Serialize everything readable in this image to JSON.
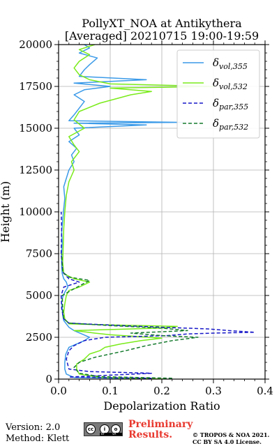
{
  "chart_data": {
    "type": "line",
    "title_lines": [
      "PollyXT_NOA at Antikythera",
      "[Averaged] 20210715 19:00-19:59"
    ],
    "xlabel": "Depolarization Ratio",
    "ylabel": "Height (m)",
    "xlim": [
      0,
      0.4
    ],
    "ylim": [
      0,
      20000
    ],
    "x_ticks": [
      0.0,
      0.1,
      0.2,
      0.3,
      0.4
    ],
    "x_tick_labels": [
      "0.0",
      "0.1",
      "0.2",
      "0.3",
      "0.4"
    ],
    "y_ticks": [
      0,
      2500,
      5000,
      7500,
      10000,
      12500,
      15000,
      17500,
      20000
    ],
    "y_tick_labels": [
      "0",
      "2500",
      "5000",
      "7500",
      "10000",
      "12500",
      "15000",
      "17500",
      "20000"
    ],
    "grid": true,
    "legend_position": "top-right",
    "series": [
      {
        "name": "vol,355",
        "legend_symbol": "δ",
        "legend_sub": "vol,355",
        "color": "#3a9ae8",
        "dash": "solid",
        "points": [
          [
            0.21,
            0
          ],
          [
            0.03,
            100
          ],
          [
            0.015,
            300
          ],
          [
            0.012,
            600
          ],
          [
            0.012,
            1000
          ],
          [
            0.014,
            1500
          ],
          [
            0.02,
            1900
          ],
          [
            0.035,
            2100
          ],
          [
            0.05,
            2300
          ],
          [
            0.06,
            2500
          ],
          [
            0.045,
            2700
          ],
          [
            0.03,
            2900
          ],
          [
            0.02,
            3100
          ],
          [
            0.015,
            3300
          ],
          [
            0.01,
            3500
          ],
          [
            0.008,
            3800
          ],
          [
            0.007,
            4200
          ],
          [
            0.006,
            4600
          ],
          [
            0.008,
            4900
          ],
          [
            0.012,
            5200
          ],
          [
            0.018,
            5500
          ],
          [
            0.015,
            5800
          ],
          [
            0.01,
            6000
          ],
          [
            0.007,
            6300
          ],
          [
            0.006,
            6800
          ],
          [
            0.006,
            7500
          ],
          [
            0.007,
            8200
          ],
          [
            0.006,
            8800
          ],
          [
            0.008,
            9500
          ],
          [
            0.01,
            10200
          ],
          [
            0.012,
            10800
          ],
          [
            0.01,
            11500
          ],
          [
            0.015,
            12000
          ],
          [
            0.02,
            12500
          ],
          [
            0.03,
            13000
          ],
          [
            0.025,
            13400
          ],
          [
            0.035,
            13800
          ],
          [
            0.02,
            14200
          ],
          [
            0.04,
            14600
          ],
          [
            0.03,
            15000
          ],
          [
            0.17,
            15200
          ],
          [
            0.03,
            15300
          ],
          [
            0.24,
            15350
          ],
          [
            0.02,
            15450
          ],
          [
            0.03,
            15800
          ],
          [
            0.04,
            16200
          ],
          [
            0.05,
            16600
          ],
          [
            0.03,
            17000
          ],
          [
            0.05,
            17300
          ],
          [
            0.1,
            17500
          ],
          [
            0.03,
            17700
          ],
          [
            0.17,
            17900
          ],
          [
            0.04,
            18100
          ],
          [
            0.05,
            18500
          ],
          [
            0.06,
            18800
          ],
          [
            0.075,
            19200
          ],
          [
            0.04,
            19500
          ],
          [
            0.06,
            19800
          ],
          [
            0.05,
            20000
          ]
        ]
      },
      {
        "name": "vol,532",
        "legend_symbol": "δ",
        "legend_sub": "vol,532",
        "color": "#7aeb1a",
        "dash": "solid",
        "points": [
          [
            0.21,
            0
          ],
          [
            0.08,
            100
          ],
          [
            0.04,
            300
          ],
          [
            0.035,
            600
          ],
          [
            0.035,
            900
          ],
          [
            0.05,
            1200
          ],
          [
            0.06,
            1500
          ],
          [
            0.08,
            1700
          ],
          [
            0.09,
            1900
          ],
          [
            0.12,
            2100
          ],
          [
            0.16,
            2300
          ],
          [
            0.2,
            2450
          ],
          [
            0.15,
            2550
          ],
          [
            0.1,
            2650
          ],
          [
            0.07,
            2750
          ],
          [
            0.03,
            2900
          ],
          [
            0.2,
            3050
          ],
          [
            0.23,
            3150
          ],
          [
            0.02,
            3300
          ],
          [
            0.012,
            3600
          ],
          [
            0.01,
            4000
          ],
          [
            0.012,
            4500
          ],
          [
            0.015,
            5000
          ],
          [
            0.02,
            5300
          ],
          [
            0.04,
            5500
          ],
          [
            0.06,
            5800
          ],
          [
            0.03,
            6000
          ],
          [
            0.01,
            6300
          ],
          [
            0.008,
            7000
          ],
          [
            0.009,
            8000
          ],
          [
            0.01,
            9000
          ],
          [
            0.012,
            10000
          ],
          [
            0.015,
            11000
          ],
          [
            0.02,
            11800
          ],
          [
            0.03,
            12500
          ],
          [
            0.025,
            13000
          ],
          [
            0.04,
            13600
          ],
          [
            0.03,
            14000
          ],
          [
            0.02,
            14500
          ],
          [
            0.05,
            15000
          ],
          [
            0.03,
            15500
          ],
          [
            0.04,
            16000
          ],
          [
            0.08,
            16500
          ],
          [
            0.14,
            17000
          ],
          [
            0.18,
            17200
          ],
          [
            0.1,
            17400
          ],
          [
            0.3,
            17500
          ],
          [
            0.1,
            17650
          ],
          [
            0.06,
            17900
          ],
          [
            0.04,
            18200
          ],
          [
            0.03,
            18600
          ],
          [
            0.04,
            19000
          ],
          [
            0.06,
            19400
          ],
          [
            0.04,
            19700
          ],
          [
            0.07,
            20000
          ]
        ]
      },
      {
        "name": "par,355",
        "legend_symbol": "δ",
        "legend_sub": "par,355",
        "color": "#1717c9",
        "dash": "dashed",
        "points": [
          [
            0.18,
            50
          ],
          [
            0.02,
            120
          ],
          [
            0.18,
            350
          ],
          [
            0.06,
            450
          ],
          [
            0.02,
            600
          ],
          [
            0.015,
            1200
          ],
          [
            0.02,
            1700
          ],
          [
            0.03,
            2000
          ],
          [
            0.05,
            2300
          ],
          [
            0.09,
            2500
          ],
          [
            0.21,
            2600
          ],
          [
            0.25,
            2700
          ],
          [
            0.3,
            2750
          ],
          [
            0.38,
            2800
          ],
          [
            0.33,
            2900
          ],
          [
            0.29,
            3000
          ],
          [
            0.2,
            3100
          ],
          [
            0.12,
            3200
          ],
          [
            0.02,
            3350
          ],
          [
            0.01,
            3600
          ],
          [
            0.006,
            4200
          ],
          [
            0.005,
            5000
          ],
          [
            0.01,
            5500
          ],
          [
            0.04,
            5800
          ],
          [
            0.02,
            6000
          ],
          [
            0.008,
            6400
          ],
          [
            0.005,
            7500
          ],
          [
            0.006,
            9000
          ],
          [
            0.005,
            10000
          ]
        ]
      },
      {
        "name": "par,532",
        "legend_symbol": "δ",
        "legend_sub": "par,532",
        "color": "#147a2d",
        "dash": "dashed",
        "points": [
          [
            0.22,
            50
          ],
          [
            0.08,
            150
          ],
          [
            0.04,
            350
          ],
          [
            0.03,
            700
          ],
          [
            0.04,
            1000
          ],
          [
            0.07,
            1300
          ],
          [
            0.1,
            1500
          ],
          [
            0.13,
            1700
          ],
          [
            0.17,
            2000
          ],
          [
            0.22,
            2300
          ],
          [
            0.27,
            2500
          ],
          [
            0.2,
            2600
          ],
          [
            0.14,
            2750
          ],
          [
            0.25,
            2900
          ],
          [
            0.2,
            3050
          ],
          [
            0.1,
            3200
          ],
          [
            0.02,
            3350
          ],
          [
            0.01,
            3600
          ],
          [
            0.008,
            4200
          ],
          [
            0.007,
            5000
          ],
          [
            0.03,
            5400
          ],
          [
            0.06,
            5900
          ],
          [
            0.02,
            6100
          ],
          [
            0.008,
            6400
          ],
          [
            0.006,
            7500
          ]
        ]
      }
    ]
  },
  "footer": {
    "version": "Version: 2.0",
    "method": "Method: Klett",
    "preliminary_line1": "Preliminary",
    "preliminary_line2": "Results.",
    "copyright_line1": "© TROPOS & NOA 2021.",
    "copyright_line2": "CC BY SA 4.0 License."
  },
  "license_badge": {
    "icon_names": [
      "cc-icon",
      "by-icon",
      "sa-icon"
    ],
    "glyphs": [
      "cc",
      "i",
      "o"
    ],
    "labels": [
      "BY",
      "SA"
    ]
  }
}
